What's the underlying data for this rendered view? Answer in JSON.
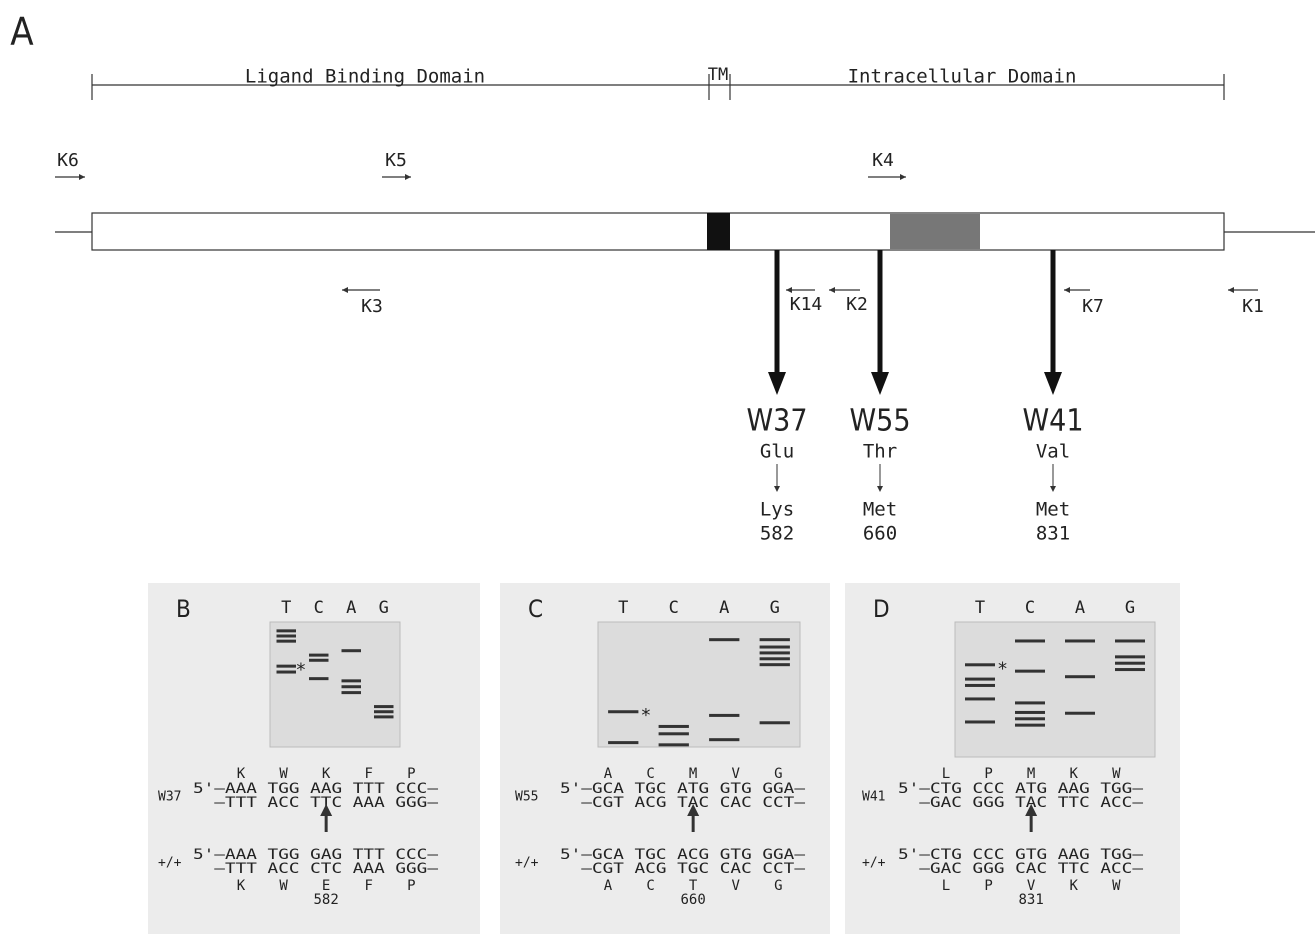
{
  "figure_label": "A",
  "domains": {
    "ligand": "Ligand Binding Domain",
    "tm": "TM",
    "intracellular": "Intracellular Domain"
  },
  "primers": [
    "K6",
    "K5",
    "K4",
    "K3",
    "K14",
    "K2",
    "K7",
    "K1"
  ],
  "mutations": [
    {
      "name": "W37",
      "from": "Glu",
      "to": "Lys",
      "position": 582
    },
    {
      "name": "W55",
      "from": "Thr",
      "to": "Met",
      "position": 660
    },
    {
      "name": "W41",
      "from": "Val",
      "to": "Met",
      "position": 831
    }
  ],
  "panels": [
    {
      "label": "B",
      "lanes": [
        "T",
        "C",
        "A",
        "G"
      ],
      "asterisk": "*",
      "mutant": {
        "name": "W37",
        "amino_acids": [
          "K",
          "W",
          "K",
          "F",
          "P"
        ],
        "strand_5": "5'—AAA TGG AAG TTT CCC—",
        "strand_3": "—TTT ACC TTC AAA GGG—"
      },
      "wildtype": {
        "name": "+/+",
        "amino_acids": [
          "K",
          "W",
          "E",
          "F",
          "P"
        ],
        "strand_5": "5'—AAA TGG GAG TTT CCC—",
        "strand_3": "—TTT ACC CTC AAA GGG—"
      },
      "position": 582
    },
    {
      "label": "C",
      "lanes": [
        "T",
        "C",
        "A",
        "G"
      ],
      "asterisk": "*",
      "mutant": {
        "name": "W55",
        "amino_acids": [
          "A",
          "C",
          "M",
          "V",
          "G"
        ],
        "strand_5": "5'—GCA TGC ATG GTG GGA—",
        "strand_3": "—CGT ACG TAC CAC CCT—"
      },
      "wildtype": {
        "name": "+/+",
        "amino_acids": [
          "A",
          "C",
          "T",
          "V",
          "G"
        ],
        "strand_5": "5'—GCA TGC ACG GTG GGA—",
        "strand_3": "—CGT ACG TGC CAC CCT—"
      },
      "position": 660
    },
    {
      "label": "D",
      "lanes": [
        "T",
        "C",
        "A",
        "G"
      ],
      "asterisk": "*",
      "mutant": {
        "name": "W41",
        "amino_acids": [
          "L",
          "P",
          "M",
          "K",
          "W"
        ],
        "strand_5": "5'—CTG CCC ATG AAG TGG—",
        "strand_3": "—GAC GGG TAC TTC ACC—"
      },
      "wildtype": {
        "name": "+/+",
        "amino_acids": [
          "L",
          "P",
          "V",
          "K",
          "W"
        ],
        "strand_5": "5'—CTG CCC GTG AAG TGG—",
        "strand_3": "—GAC GGG CAC TTC ACC—"
      },
      "position": 831
    }
  ]
}
